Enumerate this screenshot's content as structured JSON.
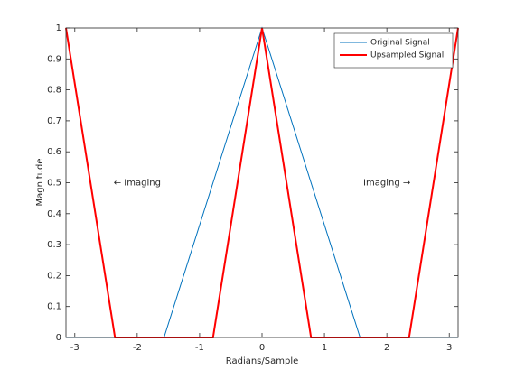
{
  "chart_data": {
    "type": "line",
    "xlabel": "Radians/Sample",
    "ylabel": "Magnitude",
    "xlim": [
      -3.1416,
      3.1416
    ],
    "ylim": [
      0,
      1
    ],
    "xticks": [
      -3,
      -2,
      -1,
      0,
      1,
      2,
      3
    ],
    "yticks": [
      0,
      0.1,
      0.2,
      0.3,
      0.4,
      0.5,
      0.6,
      0.7,
      0.8,
      0.9,
      1
    ],
    "grid": false,
    "legend": "top-right",
    "series": [
      {
        "name": "Original Signal",
        "color": "#0072bd",
        "width": 1,
        "x": [
          -3.1416,
          -1.5708,
          0,
          1.5708,
          3.1416
        ],
        "values": [
          0,
          0,
          1,
          0,
          0
        ]
      },
      {
        "name": "Upsampled Signal",
        "color": "#ff0000",
        "width": 2,
        "x": [
          -3.1416,
          -2.3562,
          -0.7854,
          0,
          0.7854,
          2.3562,
          3.1416
        ],
        "values": [
          1,
          0,
          0,
          1,
          0,
          0,
          1
        ]
      }
    ],
    "annotations": [
      {
        "text": "← Imaging",
        "x": -2,
        "y": 0.5
      },
      {
        "text": "Imaging →",
        "x": 2,
        "y": 0.5
      }
    ]
  }
}
